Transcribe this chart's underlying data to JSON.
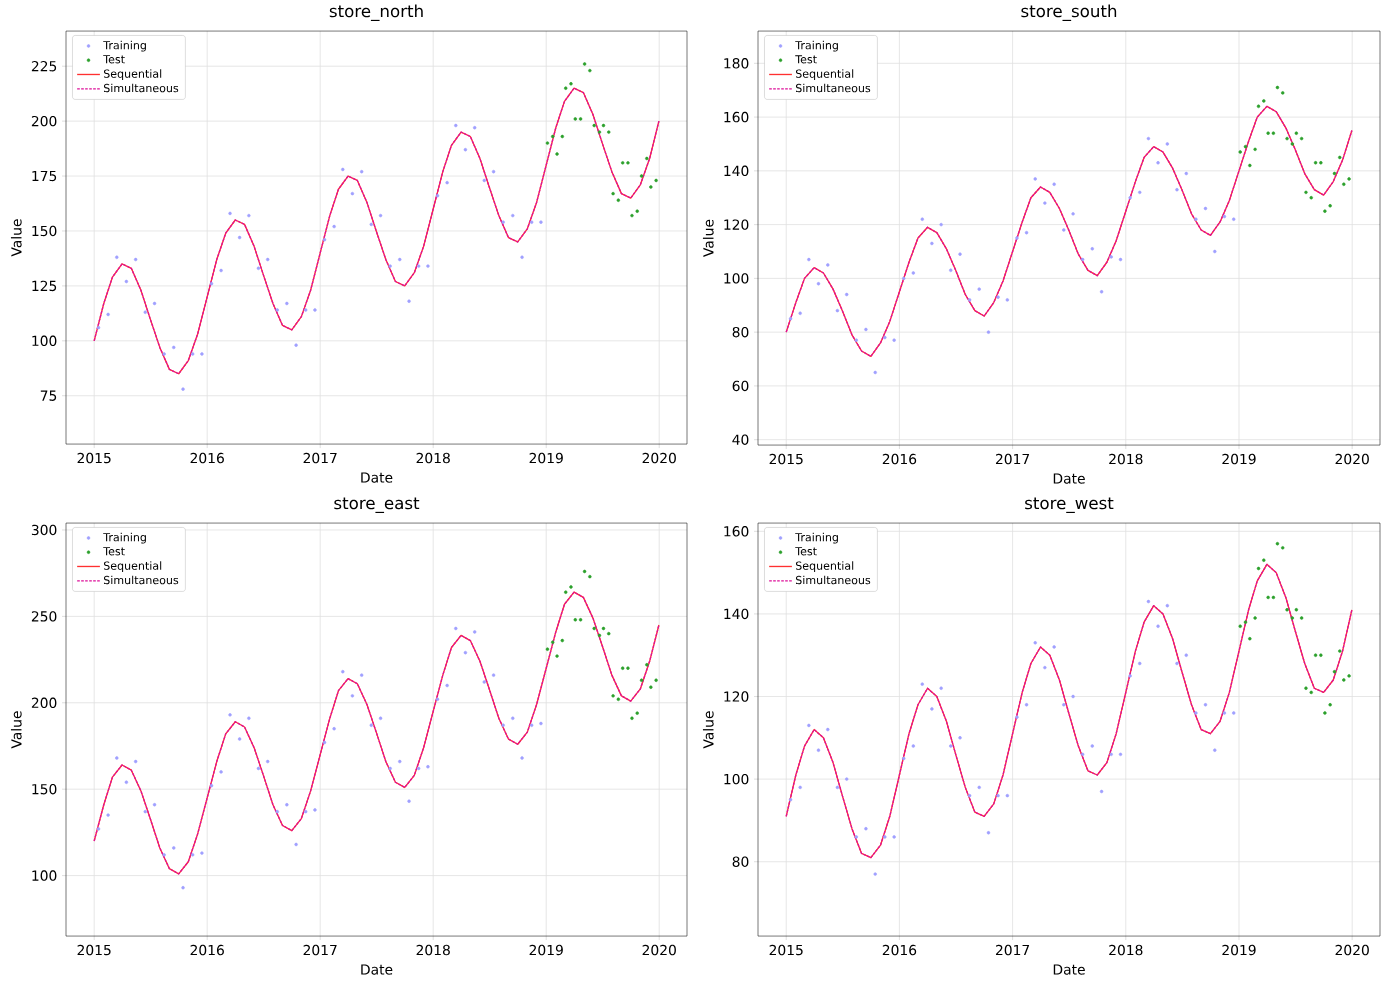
{
  "chart_data": [
    {
      "type": "line",
      "title": "store_north",
      "xlabel": "Date",
      "ylabel": "Value",
      "xlim": [
        "2014-10-02",
        "2020-03-31"
      ],
      "xticks": [
        "2015",
        "2016",
        "2017",
        "2018",
        "2019",
        "2020"
      ],
      "ylim": [
        53,
        241
      ],
      "yticks": [
        75,
        100,
        125,
        150,
        175,
        200,
        225
      ],
      "grid": true,
      "legend": "top left",
      "x": [
        "2015-01",
        "2015-02",
        "2015-03",
        "2015-04",
        "2015-05",
        "2015-06",
        "2015-07",
        "2015-08",
        "2015-09",
        "2015-10",
        "2015-11",
        "2015-12",
        "2016-01",
        "2016-02",
        "2016-03",
        "2016-04",
        "2016-05",
        "2016-06",
        "2016-07",
        "2016-08",
        "2016-09",
        "2016-10",
        "2016-11",
        "2016-12",
        "2017-01",
        "2017-02",
        "2017-03",
        "2017-04",
        "2017-05",
        "2017-06",
        "2017-07",
        "2017-08",
        "2017-09",
        "2017-10",
        "2017-11",
        "2017-12",
        "2018-01",
        "2018-02",
        "2018-03",
        "2018-04",
        "2018-05",
        "2018-06",
        "2018-07",
        "2018-08",
        "2018-09",
        "2018-10",
        "2018-11",
        "2018-12",
        "2019-01",
        "2019-02",
        "2019-03",
        "2019-04",
        "2019-05",
        "2019-06",
        "2019-07",
        "2019-08",
        "2019-09",
        "2019-10",
        "2019-11",
        "2019-12",
        "2019-12-31"
      ],
      "series": [
        {
          "name": "Training",
          "type": "scatter",
          "marker": "circle",
          "color": "#a0a0ff",
          "x": [
            "2015-01-15",
            "2015-02-15",
            "2015-03-15",
            "2015-04-15",
            "2015-05-15",
            "2015-06-15",
            "2015-07-15",
            "2015-08-15",
            "2015-09-15",
            "2015-10-15",
            "2015-11-15",
            "2015-12-15",
            "2016-01-15",
            "2016-02-15",
            "2016-03-15",
            "2016-04-15",
            "2016-05-15",
            "2016-06-15",
            "2016-07-15",
            "2016-08-15",
            "2016-09-15",
            "2016-10-15",
            "2016-11-15",
            "2016-12-15",
            "2017-01-15",
            "2017-02-15",
            "2017-03-15",
            "2017-04-15",
            "2017-05-15",
            "2017-06-15",
            "2017-07-15",
            "2017-08-15",
            "2017-09-15",
            "2017-10-15",
            "2017-11-15",
            "2017-12-15",
            "2018-01-15",
            "2018-02-15",
            "2018-03-15",
            "2018-04-15",
            "2018-05-15",
            "2018-06-15",
            "2018-07-15",
            "2018-08-15",
            "2018-09-15",
            "2018-10-15",
            "2018-11-15",
            "2018-12-15"
          ],
          "values": [
            106,
            112,
            138,
            127,
            137,
            113,
            117,
            94,
            97,
            78,
            94,
            94,
            126,
            132,
            158,
            147,
            157,
            133,
            137,
            114,
            117,
            98,
            114,
            114,
            146,
            152,
            178,
            167,
            177,
            153,
            157,
            134,
            137,
            118,
            134,
            134,
            166,
            172,
            198,
            187,
            197,
            173,
            177,
            154,
            157,
            138,
            154,
            154
          ]
        },
        {
          "name": "Test",
          "type": "scatter",
          "marker": "circle",
          "color": "#2ca02c",
          "x": [
            "2019-01-05",
            "2019-01-22",
            "2019-02-05",
            "2019-02-22",
            "2019-03-05",
            "2019-03-22",
            "2019-04-05",
            "2019-04-22",
            "2019-05-05",
            "2019-05-22",
            "2019-06-05",
            "2019-06-22",
            "2019-07-05",
            "2019-07-22",
            "2019-08-05",
            "2019-08-22",
            "2019-09-05",
            "2019-09-22",
            "2019-10-05",
            "2019-10-22",
            "2019-11-05",
            "2019-11-22",
            "2019-12-05",
            "2019-12-22"
          ],
          "values": [
            190,
            193,
            185,
            193,
            215,
            217,
            201,
            201,
            226,
            223,
            198,
            195,
            198,
            195,
            167,
            164,
            181,
            181,
            157,
            159,
            175,
            183,
            170,
            173
          ]
        },
        {
          "name": "Sequential",
          "line_style": "solid",
          "color": "#ff3030",
          "values": [
            100,
            117,
            129,
            135,
            133,
            123,
            110,
            97,
            87,
            85,
            91,
            103,
            120,
            137,
            149,
            155,
            153,
            143,
            130,
            117,
            107,
            105,
            111,
            123,
            140,
            157,
            169,
            175,
            173,
            163,
            150,
            137,
            127,
            125,
            131,
            143,
            160,
            177,
            189,
            195,
            193,
            183,
            170,
            157,
            147,
            145,
            151,
            163,
            180,
            197,
            209,
            215,
            213,
            203,
            190,
            177,
            167,
            165,
            171,
            183,
            200
          ]
        },
        {
          "name": "Simultaneous",
          "line_style": "dashed",
          "color": "#dd1199",
          "values": [
            100,
            117,
            129,
            135,
            133,
            123,
            110,
            97,
            87,
            85,
            91,
            103,
            120,
            137,
            149,
            155,
            153,
            143,
            130,
            117,
            107,
            105,
            111,
            123,
            140,
            157,
            169,
            175,
            173,
            163,
            150,
            137,
            127,
            125,
            131,
            143,
            160,
            177,
            189,
            195,
            193,
            183,
            170,
            157,
            147,
            145,
            151,
            163,
            180,
            197,
            209,
            215,
            213,
            203,
            190,
            177,
            167,
            165,
            171,
            183,
            200
          ]
        }
      ]
    },
    {
      "type": "line",
      "title": "store_south",
      "xlabel": "Date",
      "ylabel": "Value",
      "xlim": [
        "2014-10-02",
        "2020-03-31"
      ],
      "xticks": [
        "2015",
        "2016",
        "2017",
        "2018",
        "2019",
        "2020"
      ],
      "ylim": [
        38,
        192
      ],
      "yticks": [
        40,
        60,
        80,
        100,
        120,
        140,
        160,
        180
      ],
      "grid": true,
      "legend": "top left",
      "x": [
        "2015-01",
        "2015-02",
        "2015-03",
        "2015-04",
        "2015-05",
        "2015-06",
        "2015-07",
        "2015-08",
        "2015-09",
        "2015-10",
        "2015-11",
        "2015-12",
        "2016-01",
        "2016-02",
        "2016-03",
        "2016-04",
        "2016-05",
        "2016-06",
        "2016-07",
        "2016-08",
        "2016-09",
        "2016-10",
        "2016-11",
        "2016-12",
        "2017-01",
        "2017-02",
        "2017-03",
        "2017-04",
        "2017-05",
        "2017-06",
        "2017-07",
        "2017-08",
        "2017-09",
        "2017-10",
        "2017-11",
        "2017-12",
        "2018-01",
        "2018-02",
        "2018-03",
        "2018-04",
        "2018-05",
        "2018-06",
        "2018-07",
        "2018-08",
        "2018-09",
        "2018-10",
        "2018-11",
        "2018-12",
        "2019-01",
        "2019-02",
        "2019-03",
        "2019-04",
        "2019-05",
        "2019-06",
        "2019-07",
        "2019-08",
        "2019-09",
        "2019-10",
        "2019-11",
        "2019-12",
        "2019-12-31"
      ],
      "series": [
        {
          "name": "Training",
          "type": "scatter",
          "marker": "circle",
          "color": "#a0a0ff",
          "x": [
            "2015-01-15",
            "2015-02-15",
            "2015-03-15",
            "2015-04-15",
            "2015-05-15",
            "2015-06-15",
            "2015-07-15",
            "2015-08-15",
            "2015-09-15",
            "2015-10-15",
            "2015-11-15",
            "2015-12-15",
            "2016-01-15",
            "2016-02-15",
            "2016-03-15",
            "2016-04-15",
            "2016-05-15",
            "2016-06-15",
            "2016-07-15",
            "2016-08-15",
            "2016-09-15",
            "2016-10-15",
            "2016-11-15",
            "2016-12-15",
            "2017-01-15",
            "2017-02-15",
            "2017-03-15",
            "2017-04-15",
            "2017-05-15",
            "2017-06-15",
            "2017-07-15",
            "2017-08-15",
            "2017-09-15",
            "2017-10-15",
            "2017-11-15",
            "2017-12-15",
            "2018-01-15",
            "2018-02-15",
            "2018-03-15",
            "2018-04-15",
            "2018-05-15",
            "2018-06-15",
            "2018-07-15",
            "2018-08-15",
            "2018-09-15",
            "2018-10-15",
            "2018-11-15",
            "2018-12-15"
          ],
          "values": [
            85,
            87,
            107,
            98,
            105,
            88,
            94,
            77,
            81,
            65,
            78,
            77,
            100,
            102,
            122,
            113,
            120,
            103,
            109,
            92,
            96,
            80,
            93,
            92,
            115,
            117,
            137,
            128,
            135,
            118,
            124,
            107,
            111,
            95,
            108,
            107,
            130,
            132,
            152,
            143,
            150,
            133,
            139,
            122,
            126,
            110,
            123,
            122
          ]
        },
        {
          "name": "Test",
          "type": "scatter",
          "marker": "circle",
          "color": "#2ca02c",
          "x": [
            "2019-01-05",
            "2019-01-22",
            "2019-02-05",
            "2019-02-22",
            "2019-03-05",
            "2019-03-22",
            "2019-04-05",
            "2019-04-22",
            "2019-05-05",
            "2019-05-22",
            "2019-06-05",
            "2019-06-22",
            "2019-07-05",
            "2019-07-22",
            "2019-08-05",
            "2019-08-22",
            "2019-09-05",
            "2019-09-22",
            "2019-10-05",
            "2019-10-22",
            "2019-11-05",
            "2019-11-22",
            "2019-12-05",
            "2019-12-22"
          ],
          "values": [
            147,
            149,
            142,
            148,
            164,
            166,
            154,
            154,
            171,
            169,
            152,
            150,
            154,
            152,
            132,
            130,
            143,
            143,
            125,
            127,
            139,
            145,
            135,
            137
          ]
        },
        {
          "name": "Sequential",
          "line_style": "solid",
          "color": "#ff3030",
          "values": [
            80,
            91,
            100,
            104,
            102,
            96,
            88,
            79,
            73,
            71,
            76,
            84,
            95,
            106,
            115,
            119,
            117,
            111,
            103,
            94,
            88,
            86,
            91,
            99,
            110,
            121,
            130,
            134,
            132,
            126,
            118,
            109,
            103,
            101,
            106,
            114,
            125,
            136,
            145,
            149,
            147,
            141,
            133,
            124,
            118,
            116,
            121,
            129,
            140,
            151,
            160,
            164,
            162,
            156,
            148,
            139,
            133,
            131,
            136,
            144,
            155
          ]
        },
        {
          "name": "Simultaneous",
          "line_style": "dashed",
          "color": "#dd1199",
          "values": [
            80,
            91,
            100,
            104,
            102,
            96,
            88,
            79,
            73,
            71,
            76,
            84,
            95,
            106,
            115,
            119,
            117,
            111,
            103,
            94,
            88,
            86,
            91,
            99,
            110,
            121,
            130,
            134,
            132,
            126,
            118,
            109,
            103,
            101,
            106,
            114,
            125,
            136,
            145,
            149,
            147,
            141,
            133,
            124,
            118,
            116,
            121,
            129,
            140,
            151,
            160,
            164,
            162,
            156,
            148,
            139,
            133,
            131,
            136,
            144,
            155
          ]
        }
      ]
    },
    {
      "type": "line",
      "title": "store_east",
      "xlabel": "Date",
      "ylabel": "Value",
      "xlim": [
        "2014-10-02",
        "2020-03-31"
      ],
      "xticks": [
        "2015",
        "2016",
        "2017",
        "2018",
        "2019",
        "2020"
      ],
      "ylim": [
        65,
        304
      ],
      "yticks": [
        100,
        150,
        200,
        250,
        300
      ],
      "grid": true,
      "legend": "top left",
      "x": [
        "2015-01",
        "2015-02",
        "2015-03",
        "2015-04",
        "2015-05",
        "2015-06",
        "2015-07",
        "2015-08",
        "2015-09",
        "2015-10",
        "2015-11",
        "2015-12",
        "2016-01",
        "2016-02",
        "2016-03",
        "2016-04",
        "2016-05",
        "2016-06",
        "2016-07",
        "2016-08",
        "2016-09",
        "2016-10",
        "2016-11",
        "2016-12",
        "2017-01",
        "2017-02",
        "2017-03",
        "2017-04",
        "2017-05",
        "2017-06",
        "2017-07",
        "2017-08",
        "2017-09",
        "2017-10",
        "2017-11",
        "2017-12",
        "2018-01",
        "2018-02",
        "2018-03",
        "2018-04",
        "2018-05",
        "2018-06",
        "2018-07",
        "2018-08",
        "2018-09",
        "2018-10",
        "2018-11",
        "2018-12",
        "2019-01",
        "2019-02",
        "2019-03",
        "2019-04",
        "2019-05",
        "2019-06",
        "2019-07",
        "2019-08",
        "2019-09",
        "2019-10",
        "2019-11",
        "2019-12",
        "2019-12-31"
      ],
      "series": [
        {
          "name": "Training",
          "type": "scatter",
          "marker": "circle",
          "color": "#a0a0ff",
          "x": [
            "2015-01-15",
            "2015-02-15",
            "2015-03-15",
            "2015-04-15",
            "2015-05-15",
            "2015-06-15",
            "2015-07-15",
            "2015-08-15",
            "2015-09-15",
            "2015-10-15",
            "2015-11-15",
            "2015-12-15",
            "2016-01-15",
            "2016-02-15",
            "2016-03-15",
            "2016-04-15",
            "2016-05-15",
            "2016-06-15",
            "2016-07-15",
            "2016-08-15",
            "2016-09-15",
            "2016-10-15",
            "2016-11-15",
            "2016-12-15",
            "2017-01-15",
            "2017-02-15",
            "2017-03-15",
            "2017-04-15",
            "2017-05-15",
            "2017-06-15",
            "2017-07-15",
            "2017-08-15",
            "2017-09-15",
            "2017-10-15",
            "2017-11-15",
            "2017-12-15",
            "2018-01-15",
            "2018-02-15",
            "2018-03-15",
            "2018-04-15",
            "2018-05-15",
            "2018-06-15",
            "2018-07-15",
            "2018-08-15",
            "2018-09-15",
            "2018-10-15",
            "2018-11-15",
            "2018-12-15"
          ],
          "values": [
            127,
            135,
            168,
            154,
            166,
            137,
            141,
            112,
            116,
            93,
            112,
            113,
            152,
            160,
            193,
            179,
            191,
            162,
            166,
            137,
            141,
            118,
            137,
            138,
            177,
            185,
            218,
            204,
            216,
            187,
            191,
            162,
            166,
            143,
            162,
            163,
            202,
            210,
            243,
            229,
            241,
            212,
            216,
            187,
            191,
            168,
            187,
            188
          ]
        },
        {
          "name": "Test",
          "type": "scatter",
          "marker": "circle",
          "color": "#2ca02c",
          "x": [
            "2019-01-05",
            "2019-01-22",
            "2019-02-05",
            "2019-02-22",
            "2019-03-05",
            "2019-03-22",
            "2019-04-05",
            "2019-04-22",
            "2019-05-05",
            "2019-05-22",
            "2019-06-05",
            "2019-06-22",
            "2019-07-05",
            "2019-07-22",
            "2019-08-05",
            "2019-08-22",
            "2019-09-05",
            "2019-09-22",
            "2019-10-05",
            "2019-10-22",
            "2019-11-05",
            "2019-11-22",
            "2019-12-05",
            "2019-12-22"
          ],
          "values": [
            231,
            235,
            227,
            236,
            264,
            267,
            248,
            248,
            276,
            273,
            243,
            239,
            243,
            240,
            204,
            202,
            220,
            220,
            191,
            194,
            213,
            222,
            209,
            213
          ]
        },
        {
          "name": "Sequential",
          "line_style": "solid",
          "color": "#ff3030",
          "values": [
            120,
            141,
            157,
            164,
            161,
            149,
            133,
            116,
            104,
            101,
            108,
            124,
            145,
            166,
            182,
            189,
            186,
            174,
            158,
            141,
            129,
            126,
            133,
            149,
            170,
            191,
            207,
            214,
            211,
            199,
            183,
            166,
            154,
            151,
            158,
            174,
            195,
            216,
            232,
            239,
            236,
            224,
            208,
            191,
            179,
            176,
            183,
            199,
            220,
            241,
            257,
            264,
            261,
            249,
            233,
            216,
            204,
            201,
            208,
            224,
            245
          ]
        },
        {
          "name": "Simultaneous",
          "line_style": "dashed",
          "color": "#dd1199",
          "values": [
            120,
            141,
            157,
            164,
            161,
            149,
            133,
            116,
            104,
            101,
            108,
            124,
            145,
            166,
            182,
            189,
            186,
            174,
            158,
            141,
            129,
            126,
            133,
            149,
            170,
            191,
            207,
            214,
            211,
            199,
            183,
            166,
            154,
            151,
            158,
            174,
            195,
            216,
            232,
            239,
            236,
            224,
            208,
            191,
            179,
            176,
            183,
            199,
            220,
            241,
            257,
            264,
            261,
            249,
            233,
            216,
            204,
            201,
            208,
            224,
            245
          ]
        }
      ]
    },
    {
      "type": "line",
      "title": "store_west",
      "xlabel": "Date",
      "ylabel": "Value",
      "xlim": [
        "2014-10-02",
        "2020-03-31"
      ],
      "xticks": [
        "2015",
        "2016",
        "2017",
        "2018",
        "2019",
        "2020"
      ],
      "ylim": [
        62,
        162
      ],
      "yticks": [
        80,
        100,
        120,
        140,
        160
      ],
      "grid": true,
      "legend": "top left",
      "x": [
        "2015-01",
        "2015-02",
        "2015-03",
        "2015-04",
        "2015-05",
        "2015-06",
        "2015-07",
        "2015-08",
        "2015-09",
        "2015-10",
        "2015-11",
        "2015-12",
        "2016-01",
        "2016-02",
        "2016-03",
        "2016-04",
        "2016-05",
        "2016-06",
        "2016-07",
        "2016-08",
        "2016-09",
        "2016-10",
        "2016-11",
        "2016-12",
        "2017-01",
        "2017-02",
        "2017-03",
        "2017-04",
        "2017-05",
        "2017-06",
        "2017-07",
        "2017-08",
        "2017-09",
        "2017-10",
        "2017-11",
        "2017-12",
        "2018-01",
        "2018-02",
        "2018-03",
        "2018-04",
        "2018-05",
        "2018-06",
        "2018-07",
        "2018-08",
        "2018-09",
        "2018-10",
        "2018-11",
        "2018-12",
        "2019-01",
        "2019-02",
        "2019-03",
        "2019-04",
        "2019-05",
        "2019-06",
        "2019-07",
        "2019-08",
        "2019-09",
        "2019-10",
        "2019-11",
        "2019-12",
        "2019-12-31"
      ],
      "series": [
        {
          "name": "Training",
          "type": "scatter",
          "marker": "circle",
          "color": "#a0a0ff",
          "x": [
            "2015-01-15",
            "2015-02-15",
            "2015-03-15",
            "2015-04-15",
            "2015-05-15",
            "2015-06-15",
            "2015-07-15",
            "2015-08-15",
            "2015-09-15",
            "2015-10-15",
            "2015-11-15",
            "2015-12-15",
            "2016-01-15",
            "2016-02-15",
            "2016-03-15",
            "2016-04-15",
            "2016-05-15",
            "2016-06-15",
            "2016-07-15",
            "2016-08-15",
            "2016-09-15",
            "2016-10-15",
            "2016-11-15",
            "2016-12-15",
            "2017-01-15",
            "2017-02-15",
            "2017-03-15",
            "2017-04-15",
            "2017-05-15",
            "2017-06-15",
            "2017-07-15",
            "2017-08-15",
            "2017-09-15",
            "2017-10-15",
            "2017-11-15",
            "2017-12-15",
            "2018-01-15",
            "2018-02-15",
            "2018-03-15",
            "2018-04-15",
            "2018-05-15",
            "2018-06-15",
            "2018-07-15",
            "2018-08-15",
            "2018-09-15",
            "2018-10-15",
            "2018-11-15",
            "2018-12-15"
          ],
          "values": [
            95,
            98,
            113,
            107,
            112,
            98,
            100,
            86,
            88,
            77,
            86,
            86,
            105,
            108,
            123,
            117,
            122,
            108,
            110,
            96,
            98,
            87,
            96,
            96,
            115,
            118,
            133,
            127,
            132,
            118,
            120,
            106,
            108,
            97,
            106,
            106,
            125,
            128,
            143,
            137,
            142,
            128,
            130,
            116,
            118,
            107,
            116,
            116
          ]
        },
        {
          "name": "Test",
          "type": "scatter",
          "marker": "circle",
          "color": "#2ca02c",
          "x": [
            "2019-01-05",
            "2019-01-22",
            "2019-02-05",
            "2019-02-22",
            "2019-03-05",
            "2019-03-22",
            "2019-04-05",
            "2019-04-22",
            "2019-05-05",
            "2019-05-22",
            "2019-06-05",
            "2019-06-22",
            "2019-07-05",
            "2019-07-22",
            "2019-08-05",
            "2019-08-22",
            "2019-09-05",
            "2019-09-22",
            "2019-10-05",
            "2019-10-22",
            "2019-11-05",
            "2019-11-22",
            "2019-12-05",
            "2019-12-22"
          ],
          "values": [
            137,
            138,
            134,
            139,
            151,
            153,
            144,
            144,
            157,
            156,
            141,
            139,
            141,
            139,
            122,
            121,
            130,
            130,
            116,
            118,
            126,
            131,
            124,
            125
          ]
        },
        {
          "name": "Sequential",
          "line_style": "solid",
          "color": "#ff3030",
          "values": [
            91,
            101,
            108,
            112,
            110,
            104,
            96,
            88,
            82,
            81,
            84,
            91,
            101,
            111,
            118,
            122,
            120,
            114,
            106,
            98,
            92,
            91,
            94,
            101,
            111,
            121,
            128,
            132,
            130,
            124,
            116,
            108,
            102,
            101,
            104,
            111,
            121,
            131,
            138,
            142,
            140,
            134,
            126,
            118,
            112,
            111,
            114,
            121,
            131,
            141,
            148,
            152,
            150,
            144,
            136,
            128,
            122,
            121,
            124,
            131,
            141
          ]
        },
        {
          "name": "Simultaneous",
          "line_style": "dashed",
          "color": "#dd1199",
          "values": [
            91,
            101,
            108,
            112,
            110,
            104,
            96,
            88,
            82,
            81,
            84,
            91,
            101,
            111,
            118,
            122,
            120,
            114,
            106,
            98,
            92,
            91,
            94,
            101,
            111,
            121,
            128,
            132,
            130,
            124,
            116,
            108,
            102,
            101,
            104,
            111,
            121,
            131,
            138,
            142,
            140,
            134,
            126,
            118,
            112,
            111,
            114,
            121,
            131,
            141,
            148,
            152,
            150,
            144,
            136,
            128,
            122,
            121,
            124,
            131,
            141
          ]
        }
      ]
    }
  ]
}
